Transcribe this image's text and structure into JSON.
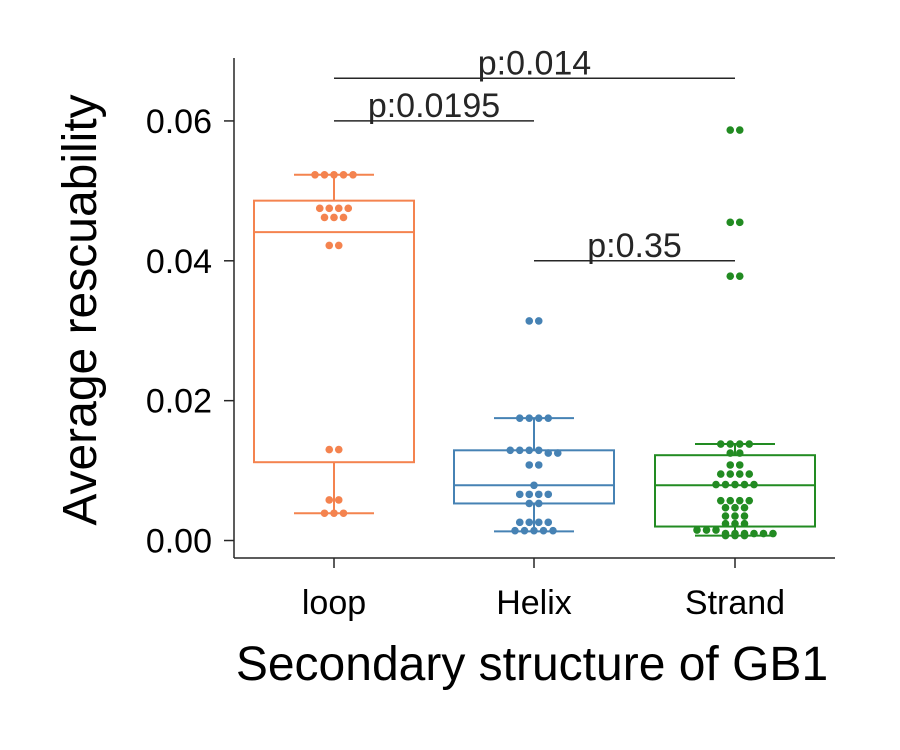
{
  "chart_data": {
    "type": "box",
    "xlabel": "Secondary structure of GB1",
    "ylabel": "Average rescuability",
    "ylim": [
      -0.0025,
      0.069
    ],
    "yticks": [
      0.0,
      0.02,
      0.04,
      0.06
    ],
    "ytick_labels": [
      "0.00",
      "0.02",
      "0.04",
      "0.06"
    ],
    "categories": [
      "loop",
      "Helix",
      "Strand"
    ],
    "grid": false,
    "legend": "none",
    "series": [
      {
        "category": "loop",
        "color": "#f4834f",
        "box": {
          "whisker_low": 0.0039,
          "q1": 0.0112,
          "median": 0.0441,
          "q3": 0.0486,
          "whisker_high": 0.0523
        },
        "points": [
          0.0523,
          0.0523,
          0.0523,
          0.0523,
          0.0523,
          0.0475,
          0.0475,
          0.0475,
          0.0475,
          0.0462,
          0.0462,
          0.0462,
          0.0422,
          0.0422,
          0.013,
          0.013,
          0.0058,
          0.0058,
          0.0039,
          0.0039,
          0.0039
        ]
      },
      {
        "category": "Helix",
        "color": "#4682b4",
        "box": {
          "whisker_low": 0.0013,
          "q1": 0.0053,
          "median": 0.0079,
          "q3": 0.0129,
          "whisker_high": 0.0175
        },
        "points": [
          0.0314,
          0.0314,
          0.0175,
          0.0175,
          0.0175,
          0.0175,
          0.0129,
          0.0129,
          0.0129,
          0.0129,
          0.0125,
          0.0125,
          0.0108,
          0.0108,
          0.0079,
          0.0066,
          0.0066,
          0.0066,
          0.0066,
          0.0053,
          0.0053,
          0.0026,
          0.0026,
          0.0026,
          0.0026,
          0.0014,
          0.0014,
          0.0014,
          0.0014,
          0.0014
        ]
      },
      {
        "category": "Strand",
        "color": "#228b22",
        "box": {
          "whisker_low": 0.0007,
          "q1": 0.002,
          "median": 0.0079,
          "q3": 0.0122,
          "whisker_high": 0.0138
        },
        "points": [
          0.0587,
          0.0587,
          0.0455,
          0.0455,
          0.0378,
          0.0378,
          0.0138,
          0.0138,
          0.0138,
          0.0138,
          0.0125,
          0.0125,
          0.0108,
          0.0108,
          0.0095,
          0.0095,
          0.0095,
          0.0095,
          0.008,
          0.008,
          0.008,
          0.008,
          0.008,
          0.0057,
          0.0057,
          0.0057,
          0.0057,
          0.0047,
          0.0047,
          0.0047,
          0.0035,
          0.0035,
          0.0035,
          0.0024,
          0.0024,
          0.0024,
          0.0015,
          0.0015,
          0.0015,
          0.001,
          0.001,
          0.001,
          0.001,
          0.001,
          0.001,
          0.0007,
          0.0007,
          0.0007
        ]
      }
    ],
    "annotations": [
      {
        "from": "loop",
        "to": "Strand",
        "y": 0.0661,
        "label": "p:0.014"
      },
      {
        "from": "loop",
        "to": "Helix",
        "y": 0.06,
        "label": "p:0.0195"
      },
      {
        "from": "Helix",
        "to": "Strand",
        "y": 0.04,
        "label": "p:0.35"
      }
    ]
  }
}
